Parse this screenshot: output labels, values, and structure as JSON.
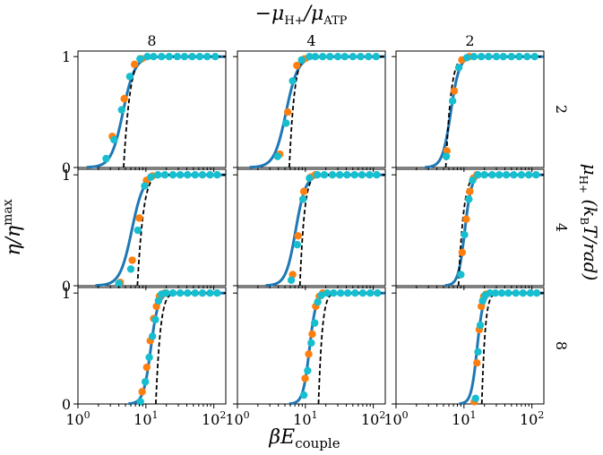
{
  "figure": {
    "top_label": "−μH+/μATP",
    "x_label": "βEcouple",
    "y_label": "η/ηmax",
    "right_label": "μH+ (kBT/rad)",
    "colors": {
      "fit_curve": "#1f77b4",
      "dashed_curve": "#000000",
      "marker_orange": "#ff7f0e",
      "marker_cyan": "#17becf"
    }
  },
  "chart_data": {
    "type": "scatter",
    "layout": "3x3 facet grid",
    "x_scale": "log",
    "xlim": [
      1,
      150
    ],
    "ylim": [
      0,
      1.05
    ],
    "x_ticks": [
      1,
      10,
      100
    ],
    "x_tick_labels": [
      "10^0",
      "10^1",
      "10^2"
    ],
    "y_ticks": [
      0,
      1
    ],
    "y_tick_labels": [
      "0",
      "1"
    ],
    "column_labels": [
      "8",
      "4",
      "2"
    ],
    "row_labels": [
      "2",
      "4",
      "8"
    ],
    "panels": [
      {
        "row": 0,
        "col": 0,
        "solid_curve": {
          "x0": 4.6,
          "k": 5.0
        },
        "dashed_curve": {
          "x0": 4.7,
          "x1": 8.0
        },
        "orange_points": [
          [
            3.2,
            0.28
          ],
          [
            4.8,
            0.62
          ],
          [
            6.8,
            0.93
          ],
          [
            8.7,
            0.98
          ]
        ],
        "cyan_points": [
          [
            2.6,
            0.08
          ],
          [
            3.4,
            0.25
          ],
          [
            4.4,
            0.52
          ],
          [
            5.8,
            0.82
          ],
          [
            8.2,
            0.98
          ],
          [
            10.5,
            1.0
          ],
          [
            13,
            1.0
          ],
          [
            17,
            1.0
          ],
          [
            22,
            1.0
          ],
          [
            29,
            1.0
          ],
          [
            37,
            1.0
          ],
          [
            48,
            1.0
          ],
          [
            62,
            1.0
          ],
          [
            80,
            1.0
          ],
          [
            105,
            1.0
          ]
        ]
      },
      {
        "row": 0,
        "col": 1,
        "solid_curve": {
          "x0": 5.2,
          "k": 5.0
        },
        "dashed_curve": {
          "x0": 5.8,
          "x1": 9.0
        },
        "orange_points": [
          [
            4.2,
            0.12
          ],
          [
            5.5,
            0.5
          ],
          [
            7.5,
            0.92
          ],
          [
            9.7,
            0.98
          ]
        ],
        "cyan_points": [
          [
            3.9,
            0.1
          ],
          [
            5.2,
            0.4
          ],
          [
            6.5,
            0.78
          ],
          [
            8.8,
            0.97
          ],
          [
            11.5,
            1.0
          ],
          [
            14,
            1.0
          ],
          [
            18,
            1.0
          ],
          [
            23,
            1.0
          ],
          [
            30,
            1.0
          ],
          [
            38,
            1.0
          ],
          [
            50,
            1.0
          ],
          [
            65,
            1.0
          ],
          [
            85,
            1.0
          ],
          [
            110,
            1.0
          ]
        ]
      },
      {
        "row": 0,
        "col": 2,
        "solid_curve": {
          "x0": 6.4,
          "k": 7.0
        },
        "dashed_curve": {
          "x0": 5.4,
          "x1": 8.5
        },
        "orange_points": [
          [
            5.6,
            0.15
          ],
          [
            7.2,
            0.69
          ],
          [
            9.3,
            0.97
          ],
          [
            12,
            1.0
          ]
        ],
        "cyan_points": [
          [
            5.5,
            0.1
          ],
          [
            6.8,
            0.6
          ],
          [
            8.4,
            0.9
          ],
          [
            11,
            0.99
          ],
          [
            14,
            1.0
          ],
          [
            18,
            1.0
          ],
          [
            23,
            1.0
          ],
          [
            30,
            1.0
          ],
          [
            38,
            1.0
          ],
          [
            50,
            1.0
          ],
          [
            65,
            1.0
          ],
          [
            85,
            1.0
          ],
          [
            110,
            1.0
          ]
        ]
      },
      {
        "row": 1,
        "col": 0,
        "solid_curve": {
          "x0": 6.2,
          "k": 5.0
        },
        "dashed_curve": {
          "x0": 7.5,
          "x1": 12.5
        },
        "orange_points": [
          [
            4.2,
            0.03
          ],
          [
            6.3,
            0.23
          ],
          [
            8.0,
            0.61
          ],
          [
            10.2,
            0.95
          ],
          [
            12.5,
            0.99
          ]
        ],
        "cyan_points": [
          [
            4.0,
            0.02
          ],
          [
            6.0,
            0.15
          ],
          [
            7.6,
            0.5
          ],
          [
            9.6,
            0.9
          ],
          [
            11.8,
            0.98
          ],
          [
            15,
            1.0
          ],
          [
            19,
            1.0
          ],
          [
            25,
            1.0
          ],
          [
            32,
            1.0
          ],
          [
            41,
            1.0
          ],
          [
            53,
            1.0
          ],
          [
            68,
            1.0
          ],
          [
            88,
            1.0
          ],
          [
            112,
            1.0
          ]
        ]
      },
      {
        "row": 1,
        "col": 1,
        "solid_curve": {
          "x0": 7.2,
          "k": 6.0
        },
        "dashed_curve": {
          "x0": 8.3,
          "x1": 12.5
        },
        "orange_points": [
          [
            6.5,
            0.1
          ],
          [
            7.8,
            0.45
          ],
          [
            9.5,
            0.85
          ],
          [
            12,
            0.98
          ],
          [
            14,
            1.0
          ]
        ],
        "cyan_points": [
          [
            6.2,
            0.05
          ],
          [
            7.6,
            0.37
          ],
          [
            9.2,
            0.78
          ],
          [
            11.5,
            0.97
          ],
          [
            15,
            1.0
          ],
          [
            19,
            1.0
          ],
          [
            25,
            1.0
          ],
          [
            32,
            1.0
          ],
          [
            41,
            1.0
          ],
          [
            53,
            1.0
          ],
          [
            68,
            1.0
          ],
          [
            88,
            1.0
          ],
          [
            112,
            1.0
          ]
        ]
      },
      {
        "row": 1,
        "col": 2,
        "solid_curve": {
          "x0": 10.3,
          "k": 9.0
        },
        "dashed_curve": {
          "x0": 8.3,
          "x1": 13.0
        },
        "orange_points": [
          [
            9.4,
            0.3
          ],
          [
            10.8,
            0.6
          ],
          [
            12.2,
            0.85
          ],
          [
            13.8,
            0.97
          ],
          [
            15.5,
            1.0
          ]
        ],
        "cyan_points": [
          [
            9.0,
            0.1
          ],
          [
            10.2,
            0.46
          ],
          [
            11.8,
            0.78
          ],
          [
            13.4,
            0.95
          ],
          [
            16,
            1.0
          ],
          [
            20,
            1.0
          ],
          [
            26,
            1.0
          ],
          [
            33,
            1.0
          ],
          [
            42,
            1.0
          ],
          [
            54,
            1.0
          ],
          [
            70,
            1.0
          ],
          [
            90,
            1.0
          ],
          [
            115,
            1.0
          ]
        ]
      },
      {
        "row": 2,
        "col": 0,
        "solid_curve": {
          "x0": 11.8,
          "k": 8.0
        },
        "dashed_curve": {
          "x0": 14.0,
          "x1": 21.0
        },
        "orange_points": [
          [
            8.8,
            0.11
          ],
          [
            10.3,
            0.33
          ],
          [
            11.6,
            0.57
          ],
          [
            13.0,
            0.77
          ],
          [
            14.3,
            0.88
          ],
          [
            15.8,
            0.97
          ],
          [
            17.2,
            0.99
          ],
          [
            19,
            1.0
          ]
        ],
        "cyan_points": [
          [
            8.3,
            0.02
          ],
          [
            9.8,
            0.2
          ],
          [
            11.2,
            0.42
          ],
          [
            12.5,
            0.61
          ],
          [
            13.8,
            0.76
          ],
          [
            15.3,
            0.93
          ],
          [
            17,
            0.99
          ],
          [
            20,
            1.0
          ],
          [
            25,
            1.0
          ],
          [
            32,
            1.0
          ],
          [
            41,
            1.0
          ],
          [
            53,
            1.0
          ],
          [
            68,
            1.0
          ],
          [
            88,
            1.0
          ],
          [
            112,
            1.0
          ]
        ]
      },
      {
        "row": 2,
        "col": 1,
        "solid_curve": {
          "x0": 11.5,
          "k": 9.0
        },
        "dashed_curve": {
          "x0": 15.6,
          "x1": 22.0
        },
        "orange_points": [
          [
            9.9,
            0.23
          ],
          [
            11.2,
            0.45
          ],
          [
            12.6,
            0.63
          ],
          [
            14.2,
            0.88
          ],
          [
            16,
            0.97
          ],
          [
            18,
            1.0
          ]
        ],
        "cyan_points": [
          [
            9.5,
            0.08
          ],
          [
            10.8,
            0.3
          ],
          [
            12.2,
            0.55
          ],
          [
            13.7,
            0.73
          ],
          [
            15.2,
            0.92
          ],
          [
            17.2,
            0.98
          ],
          [
            21,
            1.0
          ],
          [
            26,
            1.0
          ],
          [
            33,
            1.0
          ],
          [
            42,
            1.0
          ],
          [
            54,
            1.0
          ],
          [
            70,
            1.0
          ],
          [
            90,
            1.0
          ],
          [
            115,
            1.0
          ]
        ]
      },
      {
        "row": 2,
        "col": 2,
        "solid_curve": {
          "x0": 15.6,
          "k": 10.0
        },
        "dashed_curve": {
          "x0": 18.3,
          "x1": 25.0
        },
        "orange_points": [
          [
            14.2,
            0.02
          ],
          [
            15.5,
            0.37
          ],
          [
            16.8,
            0.67
          ],
          [
            18.0,
            0.88
          ],
          [
            19.5,
            0.97
          ],
          [
            21,
            0.99
          ]
        ],
        "cyan_points": [
          [
            14.8,
            0.05
          ],
          [
            16.1,
            0.47
          ],
          [
            17.4,
            0.71
          ],
          [
            18.8,
            0.93
          ],
          [
            20.5,
            0.98
          ],
          [
            24,
            1.0
          ],
          [
            29,
            1.0
          ],
          [
            36,
            1.0
          ],
          [
            45,
            1.0
          ],
          [
            58,
            1.0
          ],
          [
            74,
            1.0
          ],
          [
            95,
            1.0
          ],
          [
            118,
            1.0
          ]
        ]
      }
    ]
  }
}
